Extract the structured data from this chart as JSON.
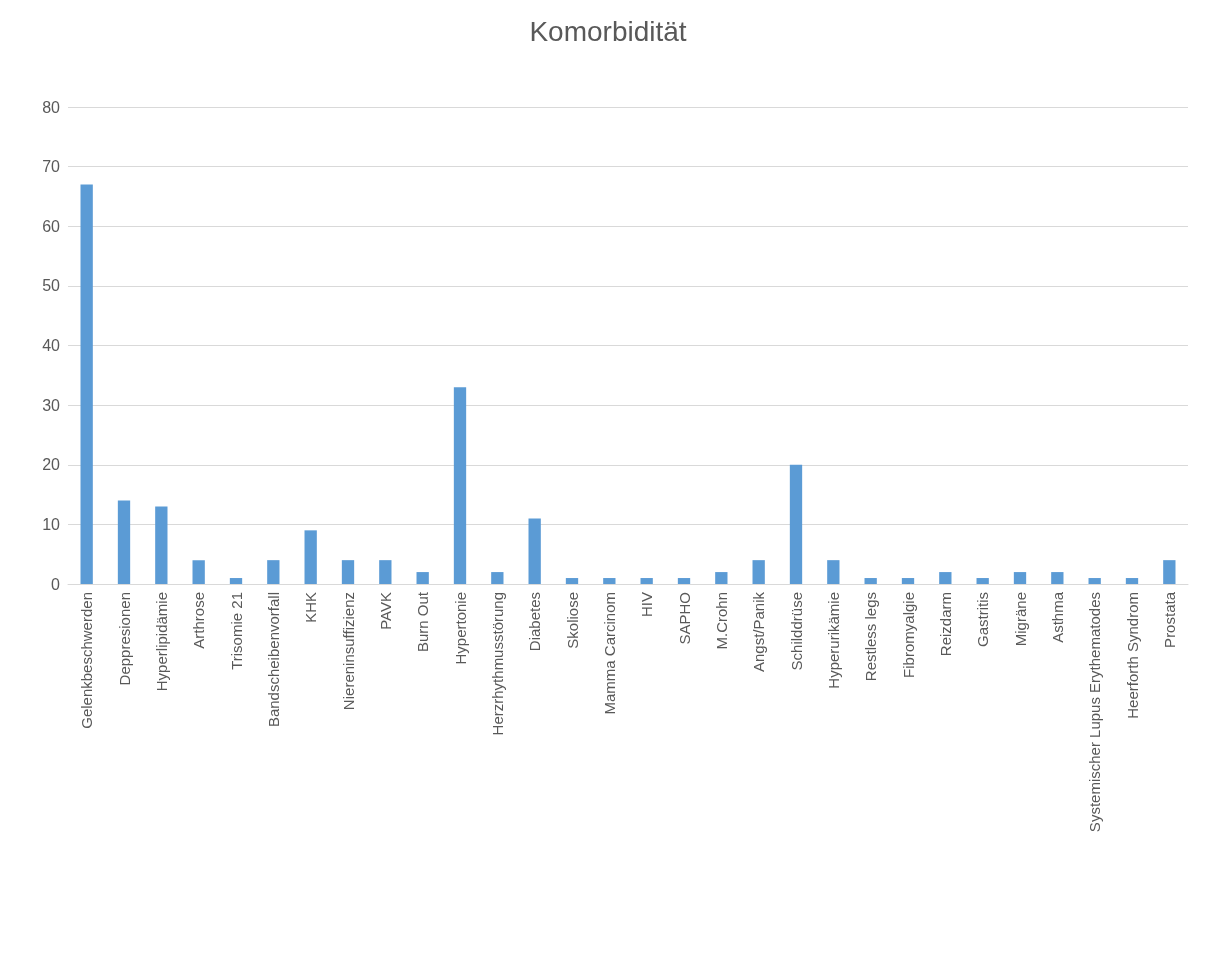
{
  "chart_data": {
    "type": "bar",
    "title": "Komorbidität",
    "categories": [
      "Gelenkbeschwerden",
      "Deppresionen",
      "Hyperlipidämie",
      "Arthrose",
      "Trisomie 21",
      "Bandscheibenvorfall",
      "KHK",
      "Niereninsuffizienz",
      "PAVK",
      "Burn Out",
      "Hypertonie",
      "Herzrhythmusstörung",
      "Diabetes",
      "Skoliose",
      "Mamma Carcinom",
      "HIV",
      "SAPHO",
      "M.Crohn",
      "Angst/Panik",
      "Schilddrüse",
      "Hyperurikämie",
      "Restless legs",
      "Fibromyalgie",
      "Reizdarm",
      "Gastritis",
      "Migräne",
      "Asthma",
      "Systemischer Lupus Erythematodes",
      "Heerforth Syndrom",
      "Prostata"
    ],
    "values": [
      67,
      14,
      13,
      4,
      1,
      4,
      9,
      4,
      4,
      2,
      33,
      2,
      11,
      1,
      1,
      1,
      1,
      2,
      4,
      20,
      4,
      1,
      1,
      2,
      1,
      2,
      2,
      1,
      1,
      4
    ],
    "color": "#5b9bd5",
    "ylim": [
      0,
      80
    ],
    "yticks": [
      0,
      10,
      20,
      30,
      40,
      50,
      60,
      70,
      80
    ],
    "grid": "y"
  }
}
